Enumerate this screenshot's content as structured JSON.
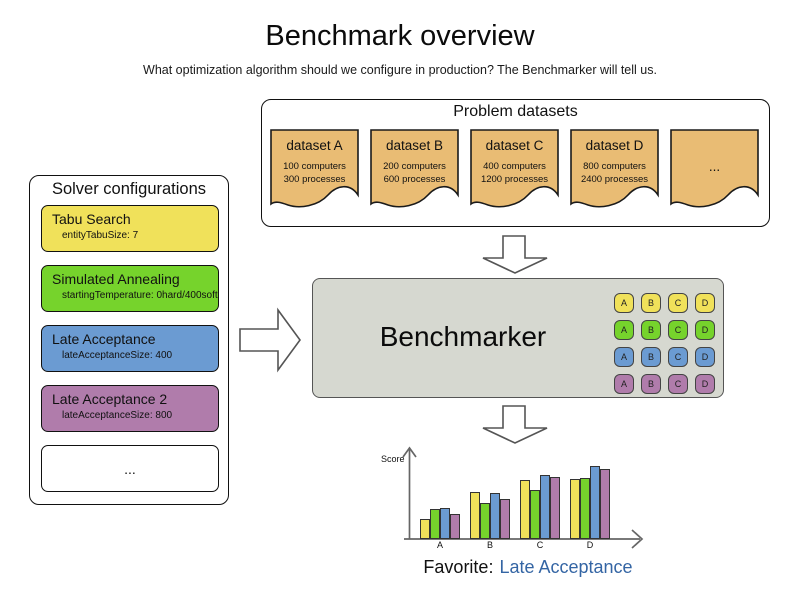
{
  "title": "Benchmark overview",
  "subtitle": "What optimization algorithm should we configure in production? The Benchmarker will tell us.",
  "solver_configurations": {
    "title": "Solver configurations",
    "items": [
      {
        "name": "Tabu Search",
        "param": "entityTabuSize: 7",
        "color": "#f0e15a"
      },
      {
        "name": "Simulated Annealing",
        "param": "startingTemperature: 0hard/400soft",
        "color": "#76d32c"
      },
      {
        "name": "Late Acceptance",
        "param": "lateAcceptanceSize: 400",
        "color": "#6b9bd2"
      },
      {
        "name": "Late Acceptance 2",
        "param": "lateAcceptanceSize: 800",
        "color": "#b07cab"
      },
      {
        "name": "...",
        "param": "",
        "color": "#ffffff"
      }
    ]
  },
  "problem_datasets": {
    "title": "Problem datasets",
    "card_color": "#e9bc74",
    "items": [
      {
        "name": "dataset A",
        "line1": "100 computers",
        "line2": "300 processes"
      },
      {
        "name": "dataset B",
        "line1": "200 computers",
        "line2": "600 processes"
      },
      {
        "name": "dataset C",
        "line1": "400 computers",
        "line2": "1200 processes"
      },
      {
        "name": "dataset D",
        "line1": "800 computers",
        "line2": "2400 processes"
      },
      {
        "name": "...",
        "line1": "",
        "line2": ""
      }
    ]
  },
  "benchmarker": {
    "label": "Benchmarker",
    "grid": {
      "columns": [
        "A",
        "B",
        "C",
        "D"
      ],
      "rows": [
        {
          "solver": "Tabu Search",
          "color": "#f0e15a"
        },
        {
          "solver": "Simulated Annealing",
          "color": "#76d32c"
        },
        {
          "solver": "Late Acceptance",
          "color": "#6b9bd2"
        },
        {
          "solver": "Late Acceptance 2",
          "color": "#b07cab"
        }
      ]
    }
  },
  "chart_data": {
    "type": "bar",
    "title": "",
    "xlabel": "",
    "ylabel": "Score",
    "ylim": [
      0,
      100
    ],
    "grid": false,
    "legend_position": "none",
    "categories": [
      "A",
      "B",
      "C",
      "D"
    ],
    "series": [
      {
        "name": "Tabu Search",
        "color": "#f0e15a",
        "values": [
          27,
          64,
          81,
          82
        ]
      },
      {
        "name": "Simulated Annealing",
        "color": "#76d32c",
        "values": [
          41,
          49,
          67,
          84
        ]
      },
      {
        "name": "Late Acceptance",
        "color": "#6b9bd2",
        "values": [
          42,
          63,
          88,
          100
        ]
      },
      {
        "name": "Late Acceptance 2",
        "color": "#b07cab",
        "values": [
          34,
          55,
          85,
          96
        ]
      }
    ]
  },
  "favorite": {
    "label": "Favorite:",
    "value": "Late Acceptance",
    "value_color": "#3465a4"
  }
}
